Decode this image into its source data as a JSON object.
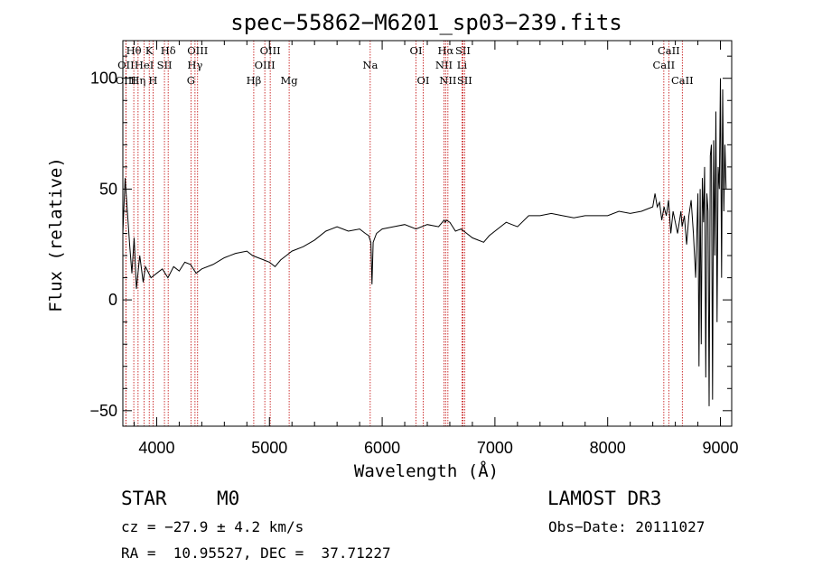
{
  "chart_data": {
    "type": "line",
    "title": "spec−55862−M6201_sp03−239.fits",
    "xlabel": "Wavelength (Å)",
    "ylabel": "Flux (relative)",
    "xlim": [
      3700,
      9100
    ],
    "ylim": [
      -57,
      117
    ],
    "xticks": [
      4000,
      5000,
      6000,
      7000,
      8000,
      9000
    ],
    "yticks": [
      -50,
      0,
      50,
      100
    ],
    "ytick_labels": [
      "−50",
      "0",
      "50",
      "100"
    ],
    "series": [
      {
        "name": "flux",
        "x": [
          3700,
          3720,
          3740,
          3760,
          3780,
          3800,
          3820,
          3850,
          3880,
          3900,
          3950,
          4000,
          4050,
          4100,
          4150,
          4200,
          4250,
          4300,
          4350,
          4400,
          4500,
          4600,
          4700,
          4800,
          4850,
          4900,
          4950,
          5000,
          5050,
          5100,
          5150,
          5200,
          5300,
          5400,
          5500,
          5600,
          5700,
          5800,
          5850,
          5880,
          5900,
          5910,
          5920,
          5950,
          6000,
          6100,
          6200,
          6300,
          6400,
          6500,
          6550,
          6560,
          6570,
          6600,
          6650,
          6700,
          6750,
          6800,
          6850,
          6900,
          6950,
          7000,
          7050,
          7100,
          7150,
          7200,
          7300,
          7400,
          7500,
          7600,
          7700,
          7800,
          7900,
          8000,
          8100,
          8200,
          8300,
          8350,
          8400,
          8420,
          8440,
          8460,
          8480,
          8500,
          8520,
          8540,
          8560,
          8580,
          8600,
          8620,
          8650,
          8660,
          8680,
          8700,
          8720,
          8740,
          8760,
          8780,
          8800,
          8810,
          8820,
          8830,
          8840,
          8850,
          8860,
          8870,
          8880,
          8890,
          8900,
          8910,
          8920,
          8930,
          8940,
          8950,
          8960,
          8970,
          8980,
          8990,
          9000,
          9010,
          9020,
          9030,
          9040,
          9050
        ],
        "y": [
          30,
          55,
          40,
          25,
          12,
          28,
          5,
          20,
          8,
          15,
          10,
          12,
          14,
          10,
          15,
          13,
          17,
          16,
          12,
          14,
          16,
          19,
          21,
          22,
          20,
          19,
          18,
          17,
          15,
          18,
          20,
          22,
          24,
          27,
          31,
          33,
          31,
          32,
          30,
          29,
          26,
          7,
          26,
          30,
          32,
          33,
          34,
          32,
          34,
          33,
          36,
          35,
          36,
          35,
          31,
          32,
          30,
          28,
          27,
          26,
          29,
          31,
          33,
          35,
          34,
          33,
          38,
          38,
          39,
          38,
          37,
          38,
          38,
          38,
          40,
          39,
          40,
          41,
          42,
          48,
          42,
          44,
          36,
          42,
          38,
          45,
          30,
          40,
          35,
          30,
          40,
          33,
          38,
          25,
          38,
          45,
          30,
          10,
          48,
          -30,
          50,
          -20,
          55,
          35,
          60,
          -35,
          48,
          40,
          -48,
          65,
          70,
          -45,
          72,
          20,
          85,
          -10,
          60,
          50,
          100,
          10,
          95,
          40,
          70,
          50
        ]
      }
    ],
    "spectral_lines": [
      {
        "label": "Hθ",
        "x": 3797,
        "row": 0
      },
      {
        "label": "OII",
        "x": 3727,
        "row": 1
      },
      {
        "label": "OIII",
        "x": 3727,
        "row": 2
      },
      {
        "label": "K",
        "x": 3934,
        "row": 0
      },
      {
        "label": "HeI",
        "x": 3889,
        "row": 1
      },
      {
        "label": "Hη",
        "x": 3835,
        "row": 2
      },
      {
        "label": "Hδ",
        "x": 4102,
        "row": 0
      },
      {
        "label": "SII",
        "x": 4069,
        "row": 1
      },
      {
        "label": "H",
        "x": 3968,
        "row": 2
      },
      {
        "label": "OIII",
        "x": 4363,
        "row": 0
      },
      {
        "label": "Hγ",
        "x": 4340,
        "row": 1
      },
      {
        "label": "G",
        "x": 4304,
        "row": 2
      },
      {
        "label": "OIII",
        "x": 5007,
        "row": 0
      },
      {
        "label": "OIII",
        "x": 4959,
        "row": 1
      },
      {
        "label": "Hβ",
        "x": 4861,
        "row": 2
      },
      {
        "label": "Mg",
        "x": 5175,
        "row": 2
      },
      {
        "label": "Na",
        "x": 5894,
        "row": 1
      },
      {
        "label": "OI",
        "x": 6300,
        "row": 0
      },
      {
        "label": "OI",
        "x": 6364,
        "row": 2
      },
      {
        "label": "Hα",
        "x": 6563,
        "row": 0
      },
      {
        "label": "NII",
        "x": 6548,
        "row": 1
      },
      {
        "label": "NII",
        "x": 6583,
        "row": 2
      },
      {
        "label": "SII",
        "x": 6716,
        "row": 0
      },
      {
        "label": "Li",
        "x": 6708,
        "row": 1
      },
      {
        "label": "SII",
        "x": 6731,
        "row": 2
      },
      {
        "label": "CaII",
        "x": 8542,
        "row": 0
      },
      {
        "label": "CaII",
        "x": 8498,
        "row": 1
      },
      {
        "label": "CaII",
        "x": 8662,
        "row": 2
      }
    ]
  },
  "info": {
    "object_class": "STAR",
    "subclass": "M0",
    "survey": "LAMOST DR3",
    "cz": "cz = −27.9 ± 4.2 km/s",
    "obs_date": "Obs−Date: 20111027",
    "coords": "RA =  10.95527, DEC =  37.71227"
  }
}
